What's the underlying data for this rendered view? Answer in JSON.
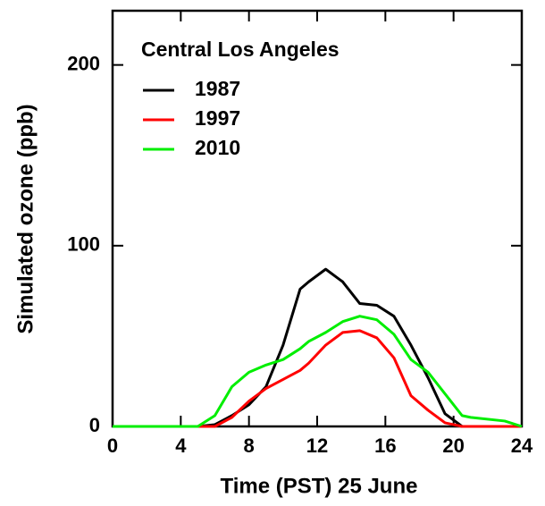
{
  "chart_data": {
    "type": "line",
    "xlabel": "Time (PST) 25 June",
    "ylabel": "Simulated ozone  (ppb)",
    "legend_title": "Central Los Angeles",
    "legend_position": "upper left",
    "x": [
      0,
      4,
      5,
      6,
      7,
      8,
      9,
      10,
      11,
      11.5,
      12.5,
      13.5,
      14.5,
      15.5,
      16.5,
      17.5,
      18.5,
      19.5,
      20.5,
      21,
      23,
      24
    ],
    "series": [
      {
        "name": "1987",
        "color": "#000000",
        "values": [
          0,
          0,
          0,
          1,
          6,
          12,
          22,
          45,
          76,
          80,
          87,
          80,
          68,
          67,
          61,
          45,
          27,
          7,
          0,
          0,
          0,
          0
        ]
      },
      {
        "name": "1997",
        "color": "#ff0000",
        "values": [
          0,
          0,
          0,
          0,
          5,
          14,
          21,
          26,
          31,
          35,
          45,
          52,
          53,
          49,
          38,
          17,
          9,
          2,
          0,
          0,
          0,
          0
        ]
      },
      {
        "name": "2010",
        "color": "#00ee00",
        "values": [
          0,
          0,
          0,
          6,
          22,
          30,
          34,
          37,
          43,
          47,
          52,
          58,
          61,
          59,
          51,
          37,
          30,
          18,
          6,
          5,
          3,
          0
        ]
      }
    ],
    "xlim": [
      0,
      24
    ],
    "xticks": [
      0,
      4,
      8,
      12,
      16,
      20,
      24
    ],
    "ylim": [
      0,
      230
    ],
    "yticks": [
      0,
      100,
      200
    ]
  }
}
